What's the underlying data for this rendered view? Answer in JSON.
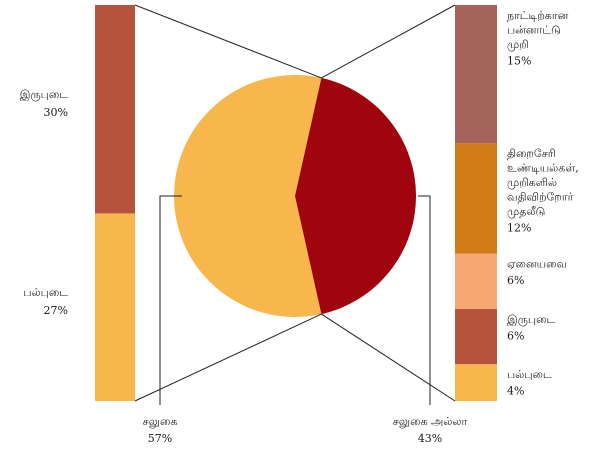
{
  "chart_data": {
    "type": "pie",
    "center_pie": {
      "slices": [
        {
          "label": "சலுகை",
          "value": 57,
          "display": "57%",
          "color": "#F8B74C"
        },
        {
          "label": "சலுகை  அல்லா",
          "value": 43,
          "display": "43%",
          "color": "#A0040F"
        }
      ]
    },
    "left_bar": {
      "parent": "சலுகை",
      "segments": [
        {
          "label": "பல்புடை",
          "value": 27,
          "display": "27%",
          "color": "#F8B74C"
        },
        {
          "label": "இருபுடை",
          "value": 30,
          "display": "30%",
          "color": "#B5533C"
        }
      ]
    },
    "right_bar": {
      "parent": "சலுகை  அல்லா",
      "segments": [
        {
          "label_lines": [
            "பல்புடை"
          ],
          "value": 4,
          "display": "4%",
          "color": "#F8B74C"
        },
        {
          "label_lines": [
            "இருபுடை"
          ],
          "value": 6,
          "display": "6%",
          "color": "#B5533C"
        },
        {
          "label_lines": [
            "ஏனையவை"
          ],
          "value": 6,
          "display": "6%",
          "color": "#F7A872"
        },
        {
          "label_lines": [
            "திறைசேரி",
            "உண்டியல்கள்,",
            "முறிகளில்",
            "வதிவிற்றோர்",
            "முதலீடு"
          ],
          "value": 12,
          "display": "12%",
          "color": "#D07A18"
        },
        {
          "label_lines": [
            "நாட்டிற்கான",
            "பன்னாட்டு",
            "முறி"
          ],
          "value": 15,
          "display": "15%",
          "color": "#A6645C"
        }
      ]
    }
  }
}
